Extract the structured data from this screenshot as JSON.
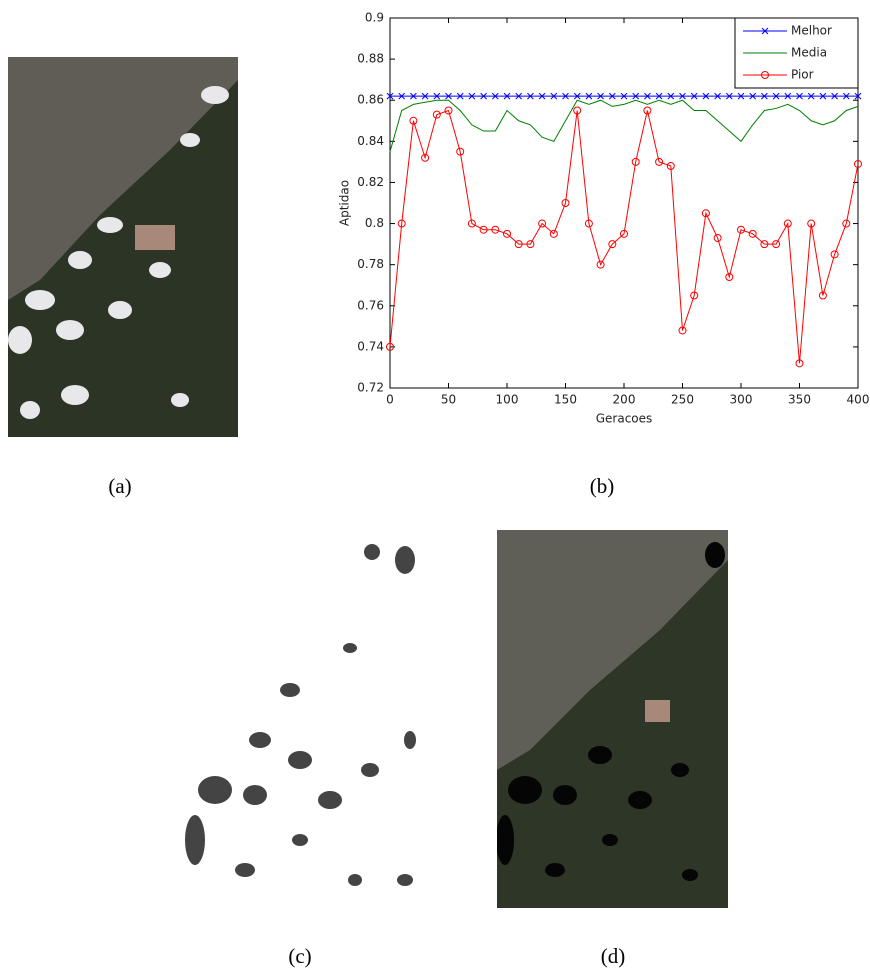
{
  "chart_data": {
    "type": "line",
    "xlabel": "Geracoes",
    "ylabel": "Aptidao",
    "x": [
      0,
      10,
      20,
      30,
      40,
      50,
      60,
      70,
      80,
      90,
      100,
      110,
      120,
      130,
      140,
      150,
      160,
      170,
      180,
      190,
      200,
      210,
      220,
      230,
      240,
      250,
      260,
      270,
      280,
      290,
      300,
      310,
      320,
      330,
      340,
      350,
      360,
      370,
      380,
      390,
      400
    ],
    "series": [
      {
        "name": "Melhor",
        "color": "#0000ff",
        "marker": "x",
        "values": [
          0.862,
          0.862,
          0.862,
          0.862,
          0.862,
          0.862,
          0.862,
          0.862,
          0.862,
          0.862,
          0.862,
          0.862,
          0.862,
          0.862,
          0.862,
          0.862,
          0.862,
          0.862,
          0.862,
          0.862,
          0.862,
          0.862,
          0.862,
          0.862,
          0.862,
          0.862,
          0.862,
          0.862,
          0.862,
          0.862,
          0.862,
          0.862,
          0.862,
          0.862,
          0.862,
          0.862,
          0.862,
          0.862,
          0.862,
          0.862,
          0.862
        ]
      },
      {
        "name": "Media",
        "color": "#008000",
        "marker": "none",
        "values": [
          0.835,
          0.855,
          0.858,
          0.859,
          0.86,
          0.86,
          0.855,
          0.848,
          0.845,
          0.845,
          0.855,
          0.85,
          0.848,
          0.842,
          0.84,
          0.85,
          0.86,
          0.858,
          0.86,
          0.857,
          0.858,
          0.86,
          0.858,
          0.86,
          0.858,
          0.86,
          0.855,
          0.855,
          0.85,
          0.845,
          0.84,
          0.848,
          0.855,
          0.856,
          0.858,
          0.855,
          0.85,
          0.848,
          0.85,
          0.855,
          0.857
        ]
      },
      {
        "name": "Pior",
        "color": "#ff0000",
        "marker": "o",
        "values": [
          0.74,
          0.8,
          0.85,
          0.832,
          0.853,
          0.855,
          0.835,
          0.8,
          0.797,
          0.797,
          0.795,
          0.79,
          0.79,
          0.8,
          0.795,
          0.81,
          0.855,
          0.8,
          0.78,
          0.79,
          0.795,
          0.83,
          0.855,
          0.83,
          0.828,
          0.748,
          0.765,
          0.805,
          0.793,
          0.774,
          0.797,
          0.795,
          0.79,
          0.79,
          0.8,
          0.732,
          0.8,
          0.765,
          0.785,
          0.8,
          0.829
        ]
      }
    ],
    "xlim": [
      0,
      400
    ],
    "xticks": [
      0,
      50,
      100,
      150,
      200,
      250,
      300,
      350,
      400
    ],
    "ylim": [
      0.72,
      0.9
    ],
    "yticks": [
      0.72,
      0.74,
      0.76,
      0.78,
      0.8,
      0.82,
      0.84,
      0.86,
      0.88,
      0.9
    ],
    "legend": "upper right",
    "grid": false
  },
  "captions": [
    "(a)",
    "(b)",
    "(c)",
    "(d)"
  ]
}
